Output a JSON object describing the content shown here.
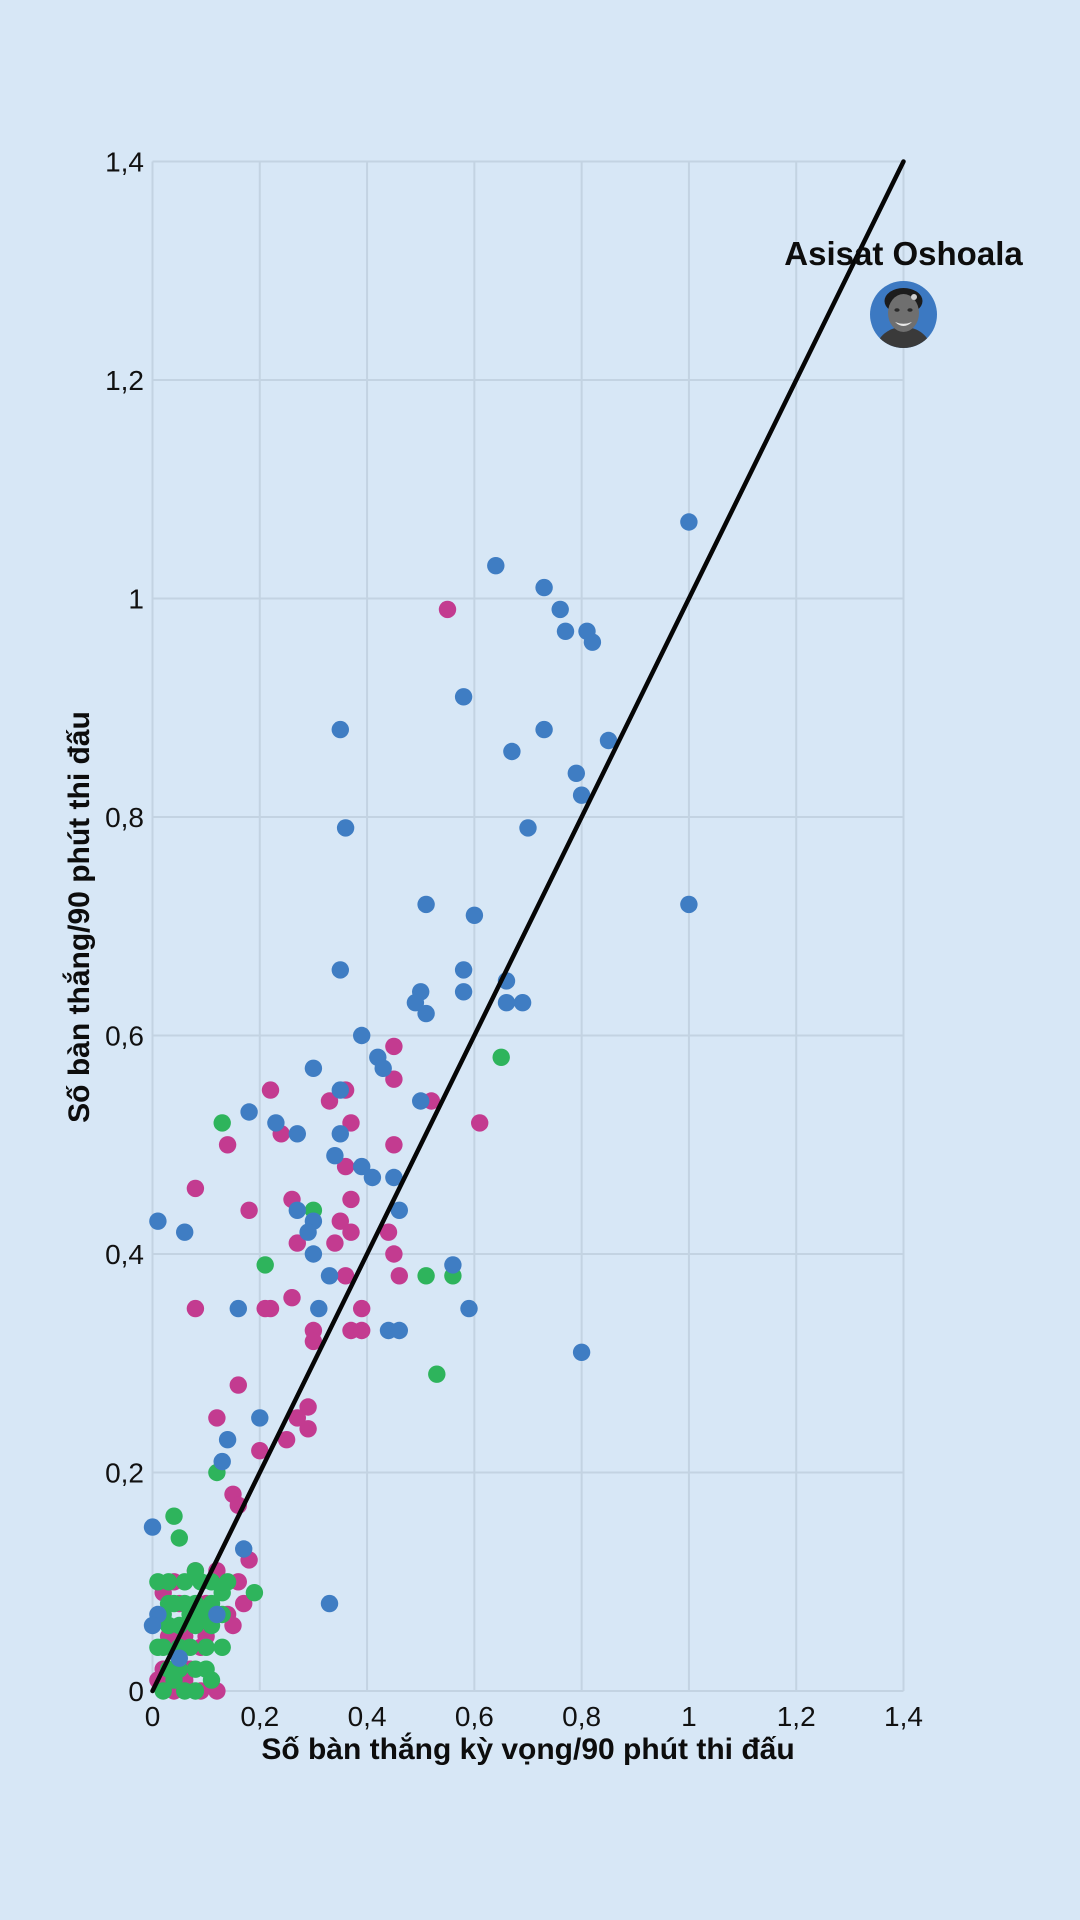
{
  "chart_data": {
    "type": "scatter",
    "title": "",
    "x_axis": {
      "title": "Số bàn thắng kỳ vọng/90 phút thi đấu",
      "min": 0,
      "max": 1.4,
      "tick_values": [
        0,
        0.2,
        0.4,
        0.6,
        0.8,
        1,
        1.2,
        1.4
      ],
      "tick_labels": [
        "0",
        "0,2",
        "0,4",
        "0,6",
        "0,8",
        "1",
        "1,2",
        "1,4"
      ]
    },
    "y_axis": {
      "title": "Số bàn thắng/90 phút thi đấu",
      "min": 0,
      "max": 1.4,
      "tick_values": [
        0,
        0.2,
        0.4,
        0.6,
        0.8,
        1,
        1.2,
        1.4
      ],
      "tick_labels": [
        "0",
        "0,2",
        "0,4",
        "0,6",
        "0,8",
        "1",
        "1,2",
        "1,4"
      ]
    },
    "grid": true,
    "legend": false,
    "reference_line": {
      "from": [
        0,
        0
      ],
      "to": [
        1.4,
        1.4
      ],
      "color": "#060606"
    },
    "annotation": {
      "label": "Asisat Oshoala",
      "x": 1.4,
      "y": 1.26,
      "avatar_icon": "player-portrait-in-blue-circle",
      "avatar_circle_color": "#3c79c2"
    },
    "style": {
      "background": "#d7e7f6",
      "gridline_color": "#c3d3e2",
      "text_color": "#111111",
      "point_radius": 8.7,
      "colors": {
        "blue": "#3f7dc3",
        "pink": "#c33b90",
        "green": "#2eb45c"
      }
    },
    "series": [
      {
        "name": "pink",
        "color_key": "pink",
        "points": [
          [
            0.55,
            0.99
          ],
          [
            0.45,
            0.59
          ],
          [
            0.45,
            0.56
          ],
          [
            0.36,
            0.55
          ],
          [
            0.22,
            0.55
          ],
          [
            0.33,
            0.54
          ],
          [
            0.52,
            0.54
          ],
          [
            0.61,
            0.52
          ],
          [
            0.24,
            0.51
          ],
          [
            0.37,
            0.52
          ],
          [
            0.45,
            0.5
          ],
          [
            0.14,
            0.5
          ],
          [
            0.36,
            0.48
          ],
          [
            0.08,
            0.46
          ],
          [
            0.26,
            0.45
          ],
          [
            0.18,
            0.44
          ],
          [
            0.37,
            0.45
          ],
          [
            0.35,
            0.43
          ],
          [
            0.37,
            0.42
          ],
          [
            0.34,
            0.41
          ],
          [
            0.27,
            0.41
          ],
          [
            0.44,
            0.42
          ],
          [
            0.45,
            0.4
          ],
          [
            0.36,
            0.38
          ],
          [
            0.46,
            0.38
          ],
          [
            0.26,
            0.36
          ],
          [
            0.22,
            0.35
          ],
          [
            0.08,
            0.35
          ],
          [
            0.21,
            0.35
          ],
          [
            0.39,
            0.35
          ],
          [
            0.3,
            0.33
          ],
          [
            0.37,
            0.33
          ],
          [
            0.39,
            0.33
          ],
          [
            0.3,
            0.32
          ],
          [
            0.29,
            0.26
          ],
          [
            0.27,
            0.25
          ],
          [
            0.16,
            0.28
          ],
          [
            0.12,
            0.25
          ],
          [
            0.29,
            0.24
          ],
          [
            0.25,
            0.23
          ],
          [
            0.2,
            0.22
          ],
          [
            0.15,
            0.18
          ],
          [
            0.16,
            0.17
          ],
          [
            0.08,
            0.11
          ],
          [
            0.12,
            0.11
          ],
          [
            0.16,
            0.1
          ],
          [
            0.18,
            0.12
          ],
          [
            0.17,
            0.08
          ],
          [
            0.14,
            0.07
          ],
          [
            0.15,
            0.06
          ],
          [
            0.12,
            0.0
          ],
          [
            0.04,
            0.0
          ],
          [
            0.09,
            0.0
          ],
          [
            0.02,
            0.09
          ],
          [
            0.05,
            0.08
          ],
          [
            0.03,
            0.05
          ],
          [
            0.06,
            0.05
          ],
          [
            0.09,
            0.04
          ],
          [
            0.02,
            0.02
          ],
          [
            0.07,
            0.02
          ],
          [
            0.1,
            0.05
          ],
          [
            0.04,
            0.1
          ],
          [
            0.1,
            0.08
          ],
          [
            0.06,
            0.01
          ],
          [
            0.01,
            0.01
          ]
        ]
      },
      {
        "name": "green",
        "color_key": "green",
        "points": [
          [
            0.65,
            0.58
          ],
          [
            0.13,
            0.52
          ],
          [
            0.3,
            0.44
          ],
          [
            0.21,
            0.39
          ],
          [
            0.51,
            0.38
          ],
          [
            0.56,
            0.38
          ],
          [
            0.53,
            0.29
          ],
          [
            0.12,
            0.2
          ],
          [
            0.04,
            0.16
          ],
          [
            0.05,
            0.14
          ],
          [
            0.09,
            0.1
          ],
          [
            0.13,
            0.09
          ],
          [
            0.19,
            0.09
          ],
          [
            0.14,
            0.1
          ],
          [
            0.03,
            0.08
          ],
          [
            0.07,
            0.07
          ],
          [
            0.1,
            0.07
          ],
          [
            0.06,
            0.0
          ],
          [
            0.01,
            0.1
          ],
          [
            0.03,
            0.1
          ],
          [
            0.06,
            0.1
          ],
          [
            0.08,
            0.11
          ],
          [
            0.11,
            0.1
          ],
          [
            0.02,
            0.07
          ],
          [
            0.04,
            0.08
          ],
          [
            0.06,
            0.08
          ],
          [
            0.08,
            0.08
          ],
          [
            0.11,
            0.08
          ],
          [
            0.01,
            0.04
          ],
          [
            0.03,
            0.06
          ],
          [
            0.05,
            0.06
          ],
          [
            0.08,
            0.06
          ],
          [
            0.11,
            0.06
          ],
          [
            0.02,
            0.04
          ],
          [
            0.05,
            0.04
          ],
          [
            0.07,
            0.04
          ],
          [
            0.1,
            0.04
          ],
          [
            0.03,
            0.02
          ],
          [
            0.05,
            0.02
          ],
          [
            0.08,
            0.02
          ],
          [
            0.1,
            0.02
          ],
          [
            0.04,
            0.01
          ],
          [
            0.08,
            0.0
          ],
          [
            0.11,
            0.01
          ],
          [
            0.13,
            0.04
          ],
          [
            0.13,
            0.07
          ],
          [
            0.02,
            0.0
          ]
        ]
      },
      {
        "name": "blue",
        "color_key": "blue",
        "points": [
          [
            1.0,
            1.07
          ],
          [
            0.64,
            1.03
          ],
          [
            0.73,
            1.01
          ],
          [
            0.76,
            0.99
          ],
          [
            0.77,
            0.97
          ],
          [
            0.81,
            0.97
          ],
          [
            0.82,
            0.96
          ],
          [
            0.58,
            0.91
          ],
          [
            0.35,
            0.88
          ],
          [
            0.73,
            0.88
          ],
          [
            0.85,
            0.87
          ],
          [
            0.67,
            0.86
          ],
          [
            0.79,
            0.84
          ],
          [
            0.8,
            0.82
          ],
          [
            0.36,
            0.79
          ],
          [
            0.7,
            0.79
          ],
          [
            0.51,
            0.72
          ],
          [
            1.0,
            0.72
          ],
          [
            0.6,
            0.71
          ],
          [
            0.35,
            0.66
          ],
          [
            0.58,
            0.66
          ],
          [
            0.66,
            0.65
          ],
          [
            0.5,
            0.64
          ],
          [
            0.58,
            0.64
          ],
          [
            0.49,
            0.63
          ],
          [
            0.51,
            0.62
          ],
          [
            0.66,
            0.63
          ],
          [
            0.69,
            0.63
          ],
          [
            0.39,
            0.6
          ],
          [
            0.42,
            0.58
          ],
          [
            0.43,
            0.57
          ],
          [
            0.3,
            0.57
          ],
          [
            0.35,
            0.55
          ],
          [
            0.5,
            0.54
          ],
          [
            0.18,
            0.53
          ],
          [
            0.23,
            0.52
          ],
          [
            0.27,
            0.51
          ],
          [
            0.35,
            0.51
          ],
          [
            0.34,
            0.49
          ],
          [
            0.39,
            0.48
          ],
          [
            0.41,
            0.47
          ],
          [
            0.45,
            0.47
          ],
          [
            0.46,
            0.44
          ],
          [
            0.27,
            0.44
          ],
          [
            0.3,
            0.43
          ],
          [
            0.01,
            0.43
          ],
          [
            0.29,
            0.42
          ],
          [
            0.06,
            0.42
          ],
          [
            0.3,
            0.4
          ],
          [
            0.33,
            0.38
          ],
          [
            0.56,
            0.39
          ],
          [
            0.31,
            0.35
          ],
          [
            0.16,
            0.35
          ],
          [
            0.44,
            0.33
          ],
          [
            0.46,
            0.33
          ],
          [
            0.59,
            0.35
          ],
          [
            0.8,
            0.31
          ],
          [
            0.2,
            0.25
          ],
          [
            0.14,
            0.23
          ],
          [
            0.13,
            0.21
          ],
          [
            0.17,
            0.13
          ],
          [
            0.0,
            0.15
          ],
          [
            0.33,
            0.08
          ],
          [
            0.12,
            0.07
          ],
          [
            0.01,
            0.07
          ],
          [
            0.05,
            0.03
          ],
          [
            0.0,
            0.06
          ]
        ]
      }
    ]
  }
}
